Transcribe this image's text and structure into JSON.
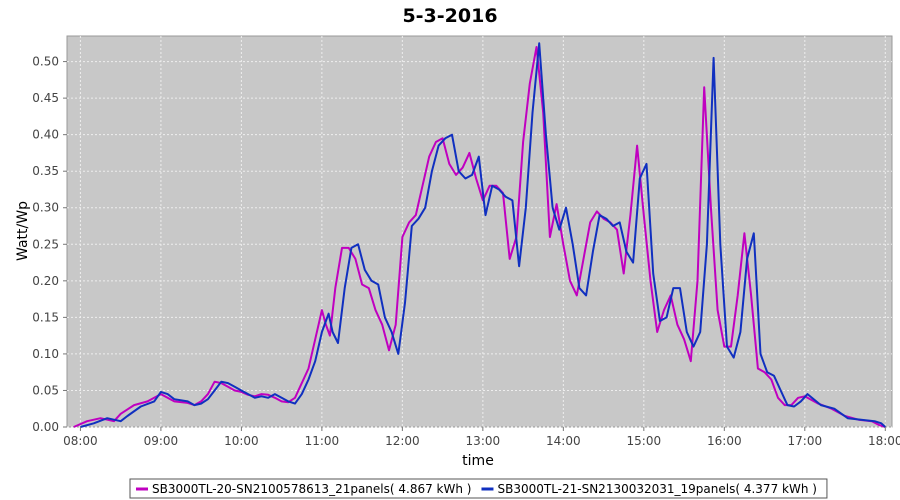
{
  "chart_data": {
    "type": "line",
    "title": "5-3-2016",
    "xlabel": "time",
    "ylabel": "Watt/Wp",
    "xlim": [
      "07:50",
      "18:05"
    ],
    "ylim": [
      0,
      0.535
    ],
    "x_ticks": [
      "08:00",
      "09:00",
      "10:00",
      "11:00",
      "12:00",
      "13:00",
      "14:00",
      "15:00",
      "16:00",
      "17:00",
      "18:00"
    ],
    "y_ticks": [
      "0.00",
      "0.05",
      "0.10",
      "0.15",
      "0.20",
      "0.25",
      "0.30",
      "0.35",
      "0.40",
      "0.45",
      "0.50"
    ],
    "grid": true,
    "legend_position": "bottom",
    "series": [
      {
        "name": "SB3000TL-20-SN2100578613_21panels( 4.867 kWh )",
        "color": "#c000c0",
        "points": [
          [
            "07:55",
            0.0
          ],
          [
            "08:05",
            0.008
          ],
          [
            "08:15",
            0.012
          ],
          [
            "08:25",
            0.008
          ],
          [
            "08:30",
            0.018
          ],
          [
            "08:40",
            0.03
          ],
          [
            "08:50",
            0.035
          ],
          [
            "08:55",
            0.04
          ],
          [
            "09:00",
            0.045
          ],
          [
            "09:05",
            0.04
          ],
          [
            "09:10",
            0.035
          ],
          [
            "09:20",
            0.033
          ],
          [
            "09:25",
            0.03
          ],
          [
            "09:30",
            0.035
          ],
          [
            "09:35",
            0.045
          ],
          [
            "09:40",
            0.062
          ],
          [
            "09:45",
            0.06
          ],
          [
            "09:50",
            0.055
          ],
          [
            "09:55",
            0.05
          ],
          [
            "10:00",
            0.048
          ],
          [
            "10:05",
            0.044
          ],
          [
            "10:10",
            0.042
          ],
          [
            "10:15",
            0.045
          ],
          [
            "10:20",
            0.044
          ],
          [
            "10:25",
            0.04
          ],
          [
            "10:30",
            0.035
          ],
          [
            "10:35",
            0.034
          ],
          [
            "10:40",
            0.04
          ],
          [
            "10:45",
            0.06
          ],
          [
            "10:50",
            0.08
          ],
          [
            "10:55",
            0.12
          ],
          [
            "11:00",
            0.16
          ],
          [
            "11:03",
            0.14
          ],
          [
            "11:06",
            0.125
          ],
          [
            "11:10",
            0.19
          ],
          [
            "11:15",
            0.245
          ],
          [
            "11:20",
            0.245
          ],
          [
            "11:25",
            0.23
          ],
          [
            "11:30",
            0.195
          ],
          [
            "11:35",
            0.19
          ],
          [
            "11:40",
            0.16
          ],
          [
            "11:45",
            0.14
          ],
          [
            "11:50",
            0.105
          ],
          [
            "11:55",
            0.14
          ],
          [
            "12:00",
            0.26
          ],
          [
            "12:05",
            0.28
          ],
          [
            "12:10",
            0.29
          ],
          [
            "12:15",
            0.33
          ],
          [
            "12:20",
            0.37
          ],
          [
            "12:25",
            0.39
          ],
          [
            "12:30",
            0.395
          ],
          [
            "12:35",
            0.36
          ],
          [
            "12:40",
            0.345
          ],
          [
            "12:45",
            0.355
          ],
          [
            "12:50",
            0.375
          ],
          [
            "12:55",
            0.34
          ],
          [
            "13:00",
            0.31
          ],
          [
            "13:05",
            0.33
          ],
          [
            "13:10",
            0.33
          ],
          [
            "13:15",
            0.32
          ],
          [
            "13:20",
            0.23
          ],
          [
            "13:25",
            0.26
          ],
          [
            "13:30",
            0.39
          ],
          [
            "13:35",
            0.47
          ],
          [
            "13:40",
            0.52
          ],
          [
            "13:45",
            0.43
          ],
          [
            "13:50",
            0.26
          ],
          [
            "13:55",
            0.305
          ],
          [
            "14:00",
            0.25
          ],
          [
            "14:05",
            0.2
          ],
          [
            "14:10",
            0.18
          ],
          [
            "14:15",
            0.23
          ],
          [
            "14:20",
            0.28
          ],
          [
            "14:25",
            0.295
          ],
          [
            "14:30",
            0.285
          ],
          [
            "14:35",
            0.28
          ],
          [
            "14:40",
            0.27
          ],
          [
            "14:45",
            0.21
          ],
          [
            "14:50",
            0.29
          ],
          [
            "14:55",
            0.385
          ],
          [
            "15:00",
            0.29
          ],
          [
            "15:05",
            0.2
          ],
          [
            "15:10",
            0.13
          ],
          [
            "15:15",
            0.16
          ],
          [
            "15:20",
            0.18
          ],
          [
            "15:25",
            0.14
          ],
          [
            "15:30",
            0.12
          ],
          [
            "15:35",
            0.09
          ],
          [
            "15:40",
            0.2
          ],
          [
            "15:45",
            0.465
          ],
          [
            "15:50",
            0.3
          ],
          [
            "15:55",
            0.16
          ],
          [
            "16:00",
            0.11
          ],
          [
            "16:05",
            0.11
          ],
          [
            "16:10",
            0.18
          ],
          [
            "16:15",
            0.265
          ],
          [
            "16:20",
            0.18
          ],
          [
            "16:25",
            0.08
          ],
          [
            "16:30",
            0.075
          ],
          [
            "16:35",
            0.065
          ],
          [
            "16:40",
            0.04
          ],
          [
            "16:45",
            0.03
          ],
          [
            "16:50",
            0.03
          ],
          [
            "16:55",
            0.04
          ],
          [
            "17:00",
            0.042
          ],
          [
            "17:10",
            0.032
          ],
          [
            "17:20",
            0.025
          ],
          [
            "17:30",
            0.015
          ],
          [
            "17:40",
            0.01
          ],
          [
            "17:50",
            0.008
          ],
          [
            "17:55",
            0.003
          ],
          [
            "18:00",
            0.0
          ]
        ]
      },
      {
        "name": "SB3000TL-21-SN2130032031_19panels( 4.377 kWh )",
        "color": "#1030c0",
        "points": [
          [
            "08:00",
            0.0
          ],
          [
            "08:10",
            0.005
          ],
          [
            "08:20",
            0.012
          ],
          [
            "08:30",
            0.008
          ],
          [
            "08:35",
            0.015
          ],
          [
            "08:45",
            0.028
          ],
          [
            "08:55",
            0.035
          ],
          [
            "09:00",
            0.048
          ],
          [
            "09:05",
            0.045
          ],
          [
            "09:10",
            0.038
          ],
          [
            "09:20",
            0.035
          ],
          [
            "09:25",
            0.03
          ],
          [
            "09:30",
            0.032
          ],
          [
            "09:35",
            0.038
          ],
          [
            "09:40",
            0.05
          ],
          [
            "09:45",
            0.062
          ],
          [
            "09:50",
            0.06
          ],
          [
            "09:55",
            0.055
          ],
          [
            "10:00",
            0.05
          ],
          [
            "10:05",
            0.045
          ],
          [
            "10:10",
            0.04
          ],
          [
            "10:15",
            0.042
          ],
          [
            "10:20",
            0.04
          ],
          [
            "10:25",
            0.045
          ],
          [
            "10:30",
            0.04
          ],
          [
            "10:35",
            0.035
          ],
          [
            "10:40",
            0.032
          ],
          [
            "10:45",
            0.045
          ],
          [
            "10:50",
            0.065
          ],
          [
            "10:55",
            0.09
          ],
          [
            "11:00",
            0.13
          ],
          [
            "11:05",
            0.155
          ],
          [
            "11:08",
            0.13
          ],
          [
            "11:12",
            0.115
          ],
          [
            "11:17",
            0.19
          ],
          [
            "11:22",
            0.245
          ],
          [
            "11:27",
            0.25
          ],
          [
            "11:32",
            0.215
          ],
          [
            "11:37",
            0.2
          ],
          [
            "11:42",
            0.195
          ],
          [
            "11:47",
            0.15
          ],
          [
            "11:52",
            0.13
          ],
          [
            "11:57",
            0.1
          ],
          [
            "12:02",
            0.17
          ],
          [
            "12:07",
            0.275
          ],
          [
            "12:12",
            0.285
          ],
          [
            "12:17",
            0.3
          ],
          [
            "12:22",
            0.35
          ],
          [
            "12:27",
            0.385
          ],
          [
            "12:32",
            0.395
          ],
          [
            "12:37",
            0.4
          ],
          [
            "12:42",
            0.35
          ],
          [
            "12:47",
            0.34
          ],
          [
            "12:52",
            0.345
          ],
          [
            "12:57",
            0.37
          ],
          [
            "13:02",
            0.29
          ],
          [
            "13:07",
            0.33
          ],
          [
            "13:12",
            0.325
          ],
          [
            "13:17",
            0.315
          ],
          [
            "13:22",
            0.31
          ],
          [
            "13:27",
            0.22
          ],
          [
            "13:32",
            0.3
          ],
          [
            "13:37",
            0.43
          ],
          [
            "13:42",
            0.525
          ],
          [
            "13:47",
            0.4
          ],
          [
            "13:52",
            0.3
          ],
          [
            "13:57",
            0.27
          ],
          [
            "14:02",
            0.3
          ],
          [
            "14:07",
            0.25
          ],
          [
            "14:12",
            0.19
          ],
          [
            "14:17",
            0.18
          ],
          [
            "14:22",
            0.24
          ],
          [
            "14:27",
            0.29
          ],
          [
            "14:32",
            0.285
          ],
          [
            "14:37",
            0.275
          ],
          [
            "14:42",
            0.28
          ],
          [
            "14:47",
            0.24
          ],
          [
            "14:52",
            0.225
          ],
          [
            "14:57",
            0.34
          ],
          [
            "15:02",
            0.36
          ],
          [
            "15:07",
            0.21
          ],
          [
            "15:12",
            0.145
          ],
          [
            "15:17",
            0.15
          ],
          [
            "15:22",
            0.19
          ],
          [
            "15:27",
            0.19
          ],
          [
            "15:32",
            0.13
          ],
          [
            "15:37",
            0.11
          ],
          [
            "15:42",
            0.13
          ],
          [
            "15:47",
            0.25
          ],
          [
            "15:52",
            0.505
          ],
          [
            "15:57",
            0.25
          ],
          [
            "16:02",
            0.11
          ],
          [
            "16:07",
            0.095
          ],
          [
            "16:12",
            0.13
          ],
          [
            "16:17",
            0.23
          ],
          [
            "16:22",
            0.265
          ],
          [
            "16:27",
            0.1
          ],
          [
            "16:32",
            0.075
          ],
          [
            "16:37",
            0.07
          ],
          [
            "16:42",
            0.05
          ],
          [
            "16:47",
            0.03
          ],
          [
            "16:52",
            0.028
          ],
          [
            "16:57",
            0.035
          ],
          [
            "17:02",
            0.045
          ],
          [
            "17:12",
            0.03
          ],
          [
            "17:22",
            0.025
          ],
          [
            "17:32",
            0.012
          ],
          [
            "17:42",
            0.01
          ],
          [
            "17:52",
            0.008
          ],
          [
            "17:57",
            0.005
          ],
          [
            "18:00",
            0.0
          ]
        ]
      }
    ]
  }
}
